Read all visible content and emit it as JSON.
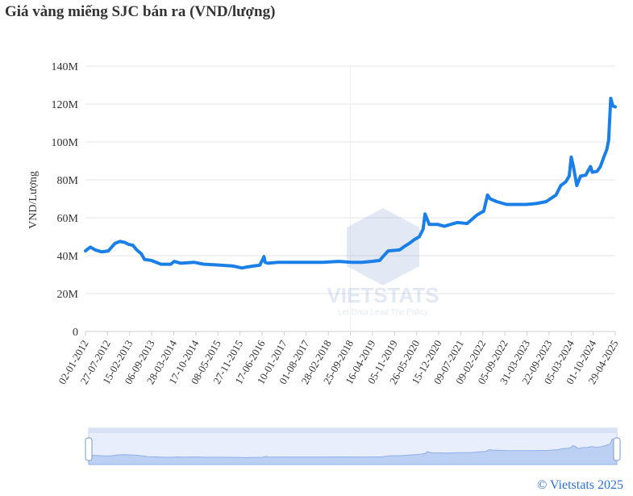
{
  "chart_data": {
    "type": "line",
    "title": "Giá vàng miếng SJC bán ra (VND/lượng)",
    "ylabel": "VND/Lượng",
    "xlabel": "",
    "ylim": [
      0,
      140000000
    ],
    "y_ticks": [
      "0",
      "20M",
      "40M",
      "60M",
      "80M",
      "100M",
      "120M",
      "140M"
    ],
    "x_ticks": [
      "02-01-2012",
      "27-07-2012",
      "15-02-2013",
      "06-09-2013",
      "28-03-2014",
      "17-10-2014",
      "08-05-2015",
      "27-11-2015",
      "17-06-2016",
      "10-01-2017",
      "01-08-2017",
      "28-02-2018",
      "25-09-2018",
      "16-04-2019",
      "05-11-2019",
      "26-05-2020",
      "15-12-2020",
      "09-07-2021",
      "09-02-2022",
      "05-09-2022",
      "31-03-2023",
      "22-09-2023",
      "05-03-2024",
      "01-10-2024",
      "29-04-2025"
    ],
    "grid": true,
    "series": [
      {
        "color": "#1a7fe6",
        "x": [
          "2012-01-02",
          "2012-02-15",
          "2012-04-01",
          "2012-06-01",
          "2012-08-01",
          "2012-10-01",
          "2012-11-15",
          "2013-01-01",
          "2013-02-01",
          "2013-03-15",
          "2013-04-20",
          "2013-06-01",
          "2013-07-01",
          "2013-09-01",
          "2013-12-01",
          "2014-03-01",
          "2014-04-01",
          "2014-06-01",
          "2014-10-01",
          "2015-01-01",
          "2015-06-01",
          "2015-10-01",
          "2015-12-20",
          "2016-02-01",
          "2016-04-01",
          "2016-06-01",
          "2016-07-10",
          "2016-07-20",
          "2016-08-15",
          "2016-11-15",
          "2017-03-01",
          "2017-06-01",
          "2017-10-01",
          "2018-01-01",
          "2018-06-01",
          "2018-10-01",
          "2019-01-01",
          "2019-04-01",
          "2019-06-15",
          "2019-07-15",
          "2019-09-01",
          "2019-12-15",
          "2020-02-01",
          "2020-03-15",
          "2020-05-01",
          "2020-06-15",
          "2020-07-20",
          "2020-08-07",
          "2020-09-15",
          "2020-12-01",
          "2021-02-01",
          "2021-04-01",
          "2021-06-01",
          "2021-09-01",
          "2021-12-01",
          "2022-02-01",
          "2022-03-08",
          "2022-04-01",
          "2022-06-01",
          "2022-09-01",
          "2022-12-01",
          "2023-03-01",
          "2023-06-01",
          "2023-09-01",
          "2023-12-01",
          "2024-01-15",
          "2024-03-01",
          "2024-04-01",
          "2024-04-20",
          "2024-05-10",
          "2024-06-10",
          "2024-07-15",
          "2024-09-01",
          "2024-10-15",
          "2024-11-01",
          "2024-12-15",
          "2025-01-15",
          "2025-02-15",
          "2025-03-15",
          "2025-04-01",
          "2025-04-20",
          "2025-05-10",
          "2025-06-01"
        ],
        "y": [
          42500000,
          44500000,
          43000000,
          42000000,
          42500000,
          46500000,
          47500000,
          47000000,
          46000000,
          45500000,
          43000000,
          41000000,
          38000000,
          37500000,
          35500000,
          35500000,
          37000000,
          36000000,
          36500000,
          35500000,
          35000000,
          34500000,
          33500000,
          34000000,
          34500000,
          35000000,
          39500000,
          36500000,
          36000000,
          36500000,
          36500000,
          36500000,
          36500000,
          36500000,
          37000000,
          36500000,
          36500000,
          37000000,
          37500000,
          39500000,
          42500000,
          43000000,
          45000000,
          46500000,
          48500000,
          50000000,
          54000000,
          62000000,
          56500000,
          56500000,
          55500000,
          56500000,
          57500000,
          57000000,
          61500000,
          63500000,
          72000000,
          70000000,
          68500000,
          67000000,
          67000000,
          67000000,
          67500000,
          68500000,
          72000000,
          77000000,
          79000000,
          82000000,
          92000000,
          87000000,
          77000000,
          82000000,
          82500000,
          87000000,
          84000000,
          84500000,
          87000000,
          92000000,
          96000000,
          101000000,
          123000000,
          119000000,
          118500000
        ]
      }
    ]
  },
  "watermark": {
    "brand": "VIETSTATS",
    "tagline": "Let Data Lead The Policy"
  },
  "copyright": "© Vietstats 2025"
}
